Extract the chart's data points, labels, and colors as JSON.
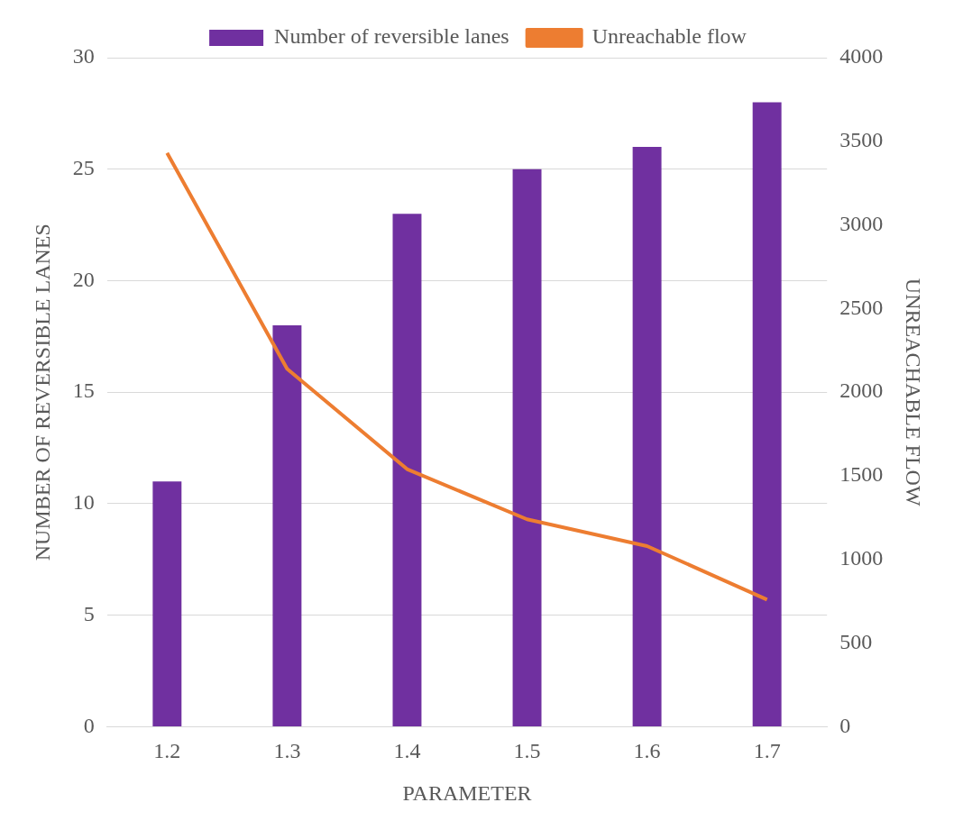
{
  "chart_data": {
    "type": "bar",
    "categories": [
      "1.2",
      "1.3",
      "1.4",
      "1.5",
      "1.6",
      "1.7"
    ],
    "series": [
      {
        "name": "Number of reversible lanes",
        "color": "#7030a0",
        "values": [
          11,
          18,
          23,
          25,
          26,
          28
        ]
      },
      {
        "name": "Unreachable flow",
        "type": "line",
        "axis": "y2",
        "color": "#ed7d31",
        "values": [
          3430,
          2140,
          1540,
          1240,
          1080,
          760
        ]
      }
    ],
    "xlabel": "PARAMETER",
    "ylabel": "NUMBER OF REVERSIBLE LANES",
    "y2label": "UNREACHABLE FLOW",
    "ylim": [
      0,
      30
    ],
    "yticks": [
      0,
      5,
      10,
      15,
      20,
      25,
      30
    ],
    "y2lim": [
      0,
      4000
    ],
    "y2ticks": [
      0,
      500,
      1000,
      1500,
      2000,
      2500,
      3000,
      3500,
      4000
    ],
    "grid": "y",
    "legend": "top",
    "marker": "none"
  }
}
